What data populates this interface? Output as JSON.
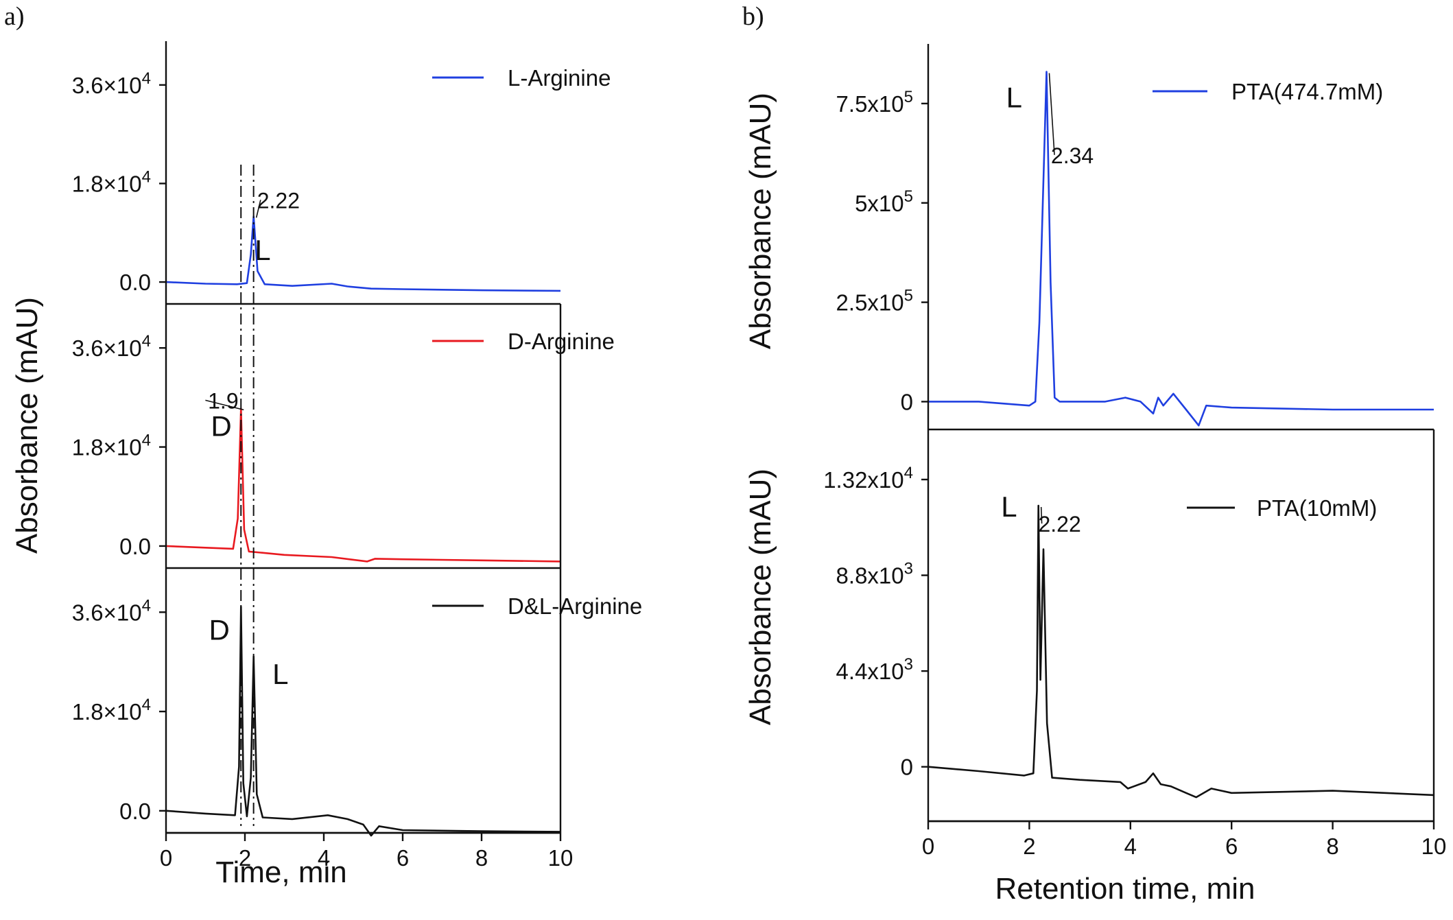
{
  "chart_data": [
    {
      "panel_label": "a)",
      "type": "line",
      "xlabel": "Time, min",
      "ylabel": "Absorbance (mAU)",
      "xlim": [
        0,
        10
      ],
      "xticks": [
        "0",
        "2",
        "4",
        "6",
        "8",
        "10"
      ],
      "subplots": [
        {
          "ylim": [
            -4000,
            44000
          ],
          "ytick_values": [
            0,
            18000,
            36000
          ],
          "ytick_labels": [
            {
              "mantissa": "0.0",
              "exponent": ""
            },
            {
              "mantissa": "1.8×10",
              "exponent": "4"
            },
            {
              "mantissa": "3.6×10",
              "exponent": "4"
            }
          ],
          "legend": {
            "label": "L-Arginine",
            "color": "#1f3fe0"
          },
          "color": "#1f3fe0",
          "series": [
            {
              "name": "L-Arginine",
              "x": [
                0,
                1,
                1.8,
                2.05,
                2.15,
                2.22,
                2.32,
                2.5,
                3.2,
                4.2,
                4.6,
                5.2,
                6,
                8,
                10
              ],
              "y": [
                0,
                -300,
                -400,
                -200,
                5000,
                12000,
                2000,
                -400,
                -700,
                -300,
                -800,
                -1200,
                -1300,
                -1500,
                -1600
              ]
            }
          ],
          "annotations": [
            {
              "text": "L",
              "x": 2.45,
              "y": 4000
            },
            {
              "text": "2.22",
              "x": 2.85,
              "y": 13500
            }
          ]
        },
        {
          "ylim": [
            -4000,
            44000
          ],
          "ytick_values": [
            0,
            18000,
            36000
          ],
          "ytick_labels": [
            {
              "mantissa": "0.0",
              "exponent": ""
            },
            {
              "mantissa": "1.8×10",
              "exponent": "4"
            },
            {
              "mantissa": "3.6×10",
              "exponent": "4"
            }
          ],
          "legend": {
            "label": "D-Arginine",
            "color": "#e8191f"
          },
          "color": "#e8191f",
          "series": [
            {
              "name": "D-Arginine",
              "x": [
                0,
                1,
                1.7,
                1.82,
                1.9,
                1.98,
                2.1,
                2.4,
                3,
                4.2,
                5.1,
                5.3,
                6,
                8,
                10
              ],
              "y": [
                0,
                -300,
                -500,
                5000,
                25000,
                3000,
                -1000,
                -1200,
                -1600,
                -2000,
                -2800,
                -2300,
                -2400,
                -2600,
                -2800
              ]
            }
          ],
          "annotations": [
            {
              "text": "D",
              "x": 1.4,
              "y": 20000
            },
            {
              "text": "1.9",
              "x": 1.45,
              "y": 25000
            }
          ]
        },
        {
          "ylim": [
            -4000,
            44000
          ],
          "ytick_values": [
            0,
            18000,
            36000
          ],
          "ytick_labels": [
            {
              "mantissa": "0.0",
              "exponent": ""
            },
            {
              "mantissa": "1.8×10",
              "exponent": "4"
            },
            {
              "mantissa": "3.6×10",
              "exponent": "4"
            }
          ],
          "legend": {
            "label": "D&L-Arginine",
            "color": "#111111"
          },
          "color": "#111111",
          "series": [
            {
              "name": "D&L-Arginine",
              "x": [
                0,
                1,
                1.75,
                1.85,
                1.9,
                1.96,
                2.05,
                2.15,
                2.22,
                2.3,
                2.45,
                3.2,
                4.1,
                4.6,
                5.0,
                5.2,
                5.4,
                6,
                8,
                10
              ],
              "y": [
                0,
                -500,
                -800,
                8000,
                37000,
                5000,
                -1000,
                6000,
                28000,
                3000,
                -1200,
                -1500,
                -800,
                -1500,
                -2500,
                -4500,
                -2800,
                -3500,
                -3700,
                -3800
              ]
            }
          ],
          "annotations": [
            {
              "text": "D",
              "x": 1.35,
              "y": 31000
            },
            {
              "text": "L",
              "x": 2.9,
              "y": 23000
            }
          ]
        }
      ],
      "vlines_x": [
        1.9,
        2.22
      ]
    },
    {
      "panel_label": "b)",
      "type": "line",
      "xlabel": "Retention time, min",
      "xlim": [
        0,
        10
      ],
      "xticks": [
        "0",
        "2",
        "4",
        "6",
        "8",
        "10"
      ],
      "subplots": [
        {
          "ylabel": "Absorbance (mAU)",
          "ylim": [
            -70000,
            900000
          ],
          "ytick_values": [
            0,
            250000,
            500000,
            750000
          ],
          "ytick_labels": [
            {
              "mantissa": "0",
              "exponent": ""
            },
            {
              "mantissa": "2.5x10",
              "exponent": "5"
            },
            {
              "mantissa": "5x10",
              "exponent": "5"
            },
            {
              "mantissa": "7.5x10",
              "exponent": "5"
            }
          ],
          "legend": {
            "label": "PTA(474.7mM)",
            "color": "#1f3fe0"
          },
          "color": "#1f3fe0",
          "series": [
            {
              "name": "PTA(474.7mM)",
              "x": [
                0,
                1,
                2,
                2.12,
                2.2,
                2.34,
                2.42,
                2.5,
                2.6,
                3,
                3.5,
                3.9,
                4.2,
                4.45,
                4.55,
                4.65,
                4.85,
                5.1,
                5.35,
                5.5,
                6,
                8,
                10
              ],
              "y": [
                0,
                0,
                -10000,
                0,
                200000,
                830000,
                300000,
                10000,
                0,
                0,
                0,
                10000,
                0,
                -30000,
                10000,
                -10000,
                20000,
                -20000,
                -60000,
                -10000,
                -15000,
                -20000,
                -20000
              ]
            }
          ],
          "annotations": [
            {
              "text": "L",
              "x": 1.7,
              "y": 740000
            },
            {
              "text": "2.34",
              "x": 2.85,
              "y": 600000
            }
          ]
        },
        {
          "ylabel": "Absorbance (mAU)",
          "ylim": [
            -2500,
            15500
          ],
          "ytick_values": [
            0,
            4400,
            8800,
            13200
          ],
          "ytick_labels": [
            {
              "mantissa": "0",
              "exponent": ""
            },
            {
              "mantissa": "4.4x10",
              "exponent": "3"
            },
            {
              "mantissa": "8.8x10",
              "exponent": "3"
            },
            {
              "mantissa": "1.32x10",
              "exponent": "4"
            }
          ],
          "legend": {
            "label": "PTA(10mM)",
            "color": "#111111"
          },
          "color": "#111111",
          "series": [
            {
              "name": "PTA(10mM)",
              "x": [
                0,
                1,
                1.9,
                2.08,
                2.15,
                2.18,
                2.22,
                2.28,
                2.35,
                2.45,
                3,
                3.8,
                3.95,
                4.3,
                4.45,
                4.6,
                4.8,
                5.1,
                5.3,
                5.6,
                6,
                8,
                10
              ],
              "y": [
                0,
                -200,
                -400,
                -300,
                3500,
                12000,
                4000,
                10000,
                2000,
                -500,
                -600,
                -700,
                -1000,
                -700,
                -300,
                -800,
                -900,
                -1200,
                -1400,
                -1000,
                -1200,
                -1100,
                -1300
              ]
            }
          ],
          "annotations": [
            {
              "text": "L",
              "x": 1.6,
              "y": 11500
            },
            {
              "text": "2.22",
              "x": 2.6,
              "y": 10800
            }
          ]
        }
      ]
    }
  ]
}
